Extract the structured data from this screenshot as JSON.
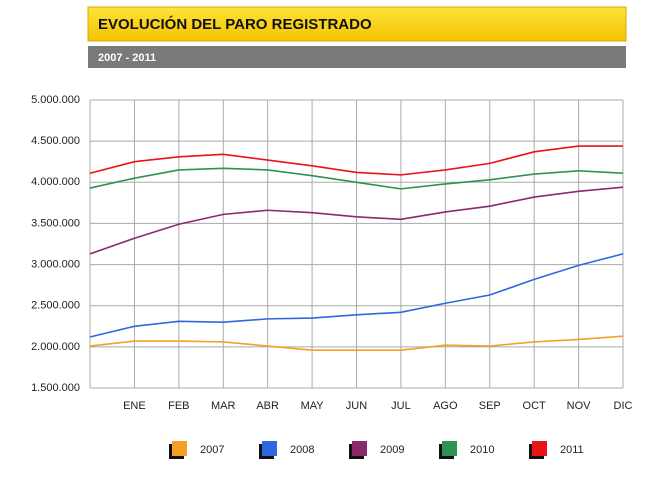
{
  "chart_data": {
    "type": "line",
    "title": "EVOLUCIÓN DEL PARO REGISTRADO",
    "subtitle": "2007 - 2011",
    "categories": [
      null,
      "ENE",
      "FEB",
      "MAR",
      "ABR",
      "MAY",
      "JUN",
      "JUL",
      "AGO",
      "SEP",
      "OCT",
      "NOV",
      "DIC"
    ],
    "series": [
      {
        "name": "2007",
        "color": "#f4a024",
        "values": [
          2010000,
          2070000,
          2070000,
          2060000,
          2010000,
          1960000,
          1960000,
          1960000,
          2020000,
          2010000,
          2060000,
          2090000,
          2130000
        ]
      },
      {
        "name": "2008",
        "color": "#2f67e0",
        "values": [
          2120000,
          2250000,
          2310000,
          2300000,
          2340000,
          2350000,
          2390000,
          2420000,
          2530000,
          2630000,
          2820000,
          2990000,
          3130000
        ]
      },
      {
        "name": "2009",
        "color": "#8b2a6a",
        "values": [
          3130000,
          3320000,
          3490000,
          3610000,
          3660000,
          3630000,
          3580000,
          3550000,
          3640000,
          3710000,
          3820000,
          3890000,
          3940000
        ]
      },
      {
        "name": "2010",
        "color": "#2e9352",
        "values": [
          3930000,
          4050000,
          4150000,
          4170000,
          4150000,
          4080000,
          4000000,
          3920000,
          3980000,
          4030000,
          4100000,
          4140000,
          4110000
        ]
      },
      {
        "name": "2011",
        "color": "#e8141a",
        "values": [
          4110000,
          4250000,
          4310000,
          4340000,
          4270000,
          4200000,
          4120000,
          4090000,
          4150000,
          4230000,
          4370000,
          4440000,
          4440000
        ]
      }
    ],
    "ylim": [
      1500000,
      5000000
    ],
    "yticks": [
      {
        "value": 1500000,
        "label": "1.500.000"
      },
      {
        "value": 2000000,
        "label": "2.000.000"
      },
      {
        "value": 2500000,
        "label": "2.500.000"
      },
      {
        "value": 3000000,
        "label": "3.000.000"
      },
      {
        "value": 3500000,
        "label": "3.500.000"
      },
      {
        "value": 4000000,
        "label": "4.000.000"
      },
      {
        "value": 4500000,
        "label": "4.500.000"
      },
      {
        "value": 5000000,
        "label": "5.000.000"
      }
    ],
    "grid": true
  }
}
